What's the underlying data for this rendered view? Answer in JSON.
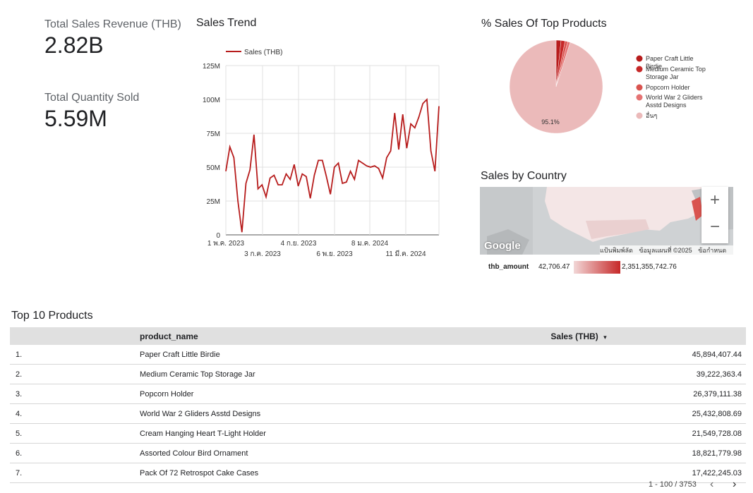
{
  "kpis": {
    "revenue": {
      "label": "Total Sales Revenue (THB)",
      "value": "2.82B"
    },
    "quantity": {
      "label": "Total Quantity Sold",
      "value": "5.59M"
    }
  },
  "sales_trend": {
    "title": "Sales Trend",
    "legend_label": "Sales (THB)",
    "y_ticks": [
      "0",
      "25M",
      "50M",
      "75M",
      "100M",
      "125M"
    ],
    "x_ticks_top": [
      "1 พ.ค. 2023",
      "4 ก.ย. 2023",
      "8 ม.ค. 2024"
    ],
    "x_ticks_bottom": [
      "3 ก.ค. 2023",
      "6 พ.ย. 2023",
      "11 มี.ค. 2024"
    ],
    "color": "#b71c1c"
  },
  "pie": {
    "title": "% Sales Of Top Products",
    "main_slice_label": "95.1%",
    "legend": [
      {
        "label": "Paper Craft Little Birdie",
        "color": "#b71c1c"
      },
      {
        "label": "Medium Ceramic Top Storage Jar",
        "color": "#c62828"
      },
      {
        "label": "Popcorn Holder",
        "color": "#d9534f"
      },
      {
        "label": "World War 2 Gliders Asstd Designs",
        "color": "#e57373"
      },
      {
        "label": "อื่นๆ",
        "color": "#ebbaba"
      }
    ]
  },
  "country_map": {
    "title": "Sales by Country",
    "zoom_in": "+",
    "zoom_out": "−",
    "logo": "Google",
    "footer": [
      "แป้นพิมพ์ลัด",
      "ข้อมูลแผนที่ ©2025",
      "ข้อกำหนด"
    ],
    "scale_label": "thb_amount",
    "scale_min": "42,706.47",
    "scale_max": "2,351,355,742.76"
  },
  "top_products": {
    "title": "Top 10 Products",
    "columns": {
      "name": "product_name",
      "sales": "Sales (THB)"
    },
    "sort_icon": "▾",
    "rows": [
      {
        "idx": "1.",
        "name": "Paper Craft Little Birdie",
        "sales": "45,894,407.44"
      },
      {
        "idx": "2.",
        "name": "Medium Ceramic Top Storage Jar",
        "sales": "39,222,363.4"
      },
      {
        "idx": "3.",
        "name": "Popcorn Holder",
        "sales": "26,379,111.38"
      },
      {
        "idx": "4.",
        "name": "World War 2 Gliders Asstd Designs",
        "sales": "25,432,808.69"
      },
      {
        "idx": "5.",
        "name": "Cream Hanging Heart T-Light Holder",
        "sales": "21,549,728.08"
      },
      {
        "idx": "6.",
        "name": "Assorted Colour Bird Ornament",
        "sales": "18,821,779.98"
      },
      {
        "idx": "7.",
        "name": "Pack Of 72 Retrospot Cake Cases",
        "sales": "17,422,245.03"
      }
    ],
    "pagination": "1 - 100 / 3753",
    "prev_icon": "‹",
    "next_icon": "›"
  },
  "chart_data": [
    {
      "type": "line",
      "title": "Sales Trend",
      "series": [
        {
          "name": "Sales (THB)",
          "values": [
            47,
            65,
            57,
            25,
            2,
            38,
            48,
            74,
            34,
            37,
            28,
            42,
            44,
            37,
            37,
            45,
            41,
            52,
            36,
            45,
            43,
            27,
            44,
            55,
            55,
            43,
            30,
            50,
            53,
            38,
            39,
            47,
            41,
            55,
            53,
            51,
            50,
            51,
            49,
            42,
            57,
            62,
            90,
            63,
            89,
            64,
            82,
            79,
            87,
            97,
            100,
            62,
            47,
            95
          ]
        }
      ],
      "ylim": [
        0,
        125
      ],
      "ylabel_unit": "M",
      "grid": true,
      "legend": "top"
    },
    {
      "type": "pie",
      "title": "% Sales Of Top Products",
      "categories": [
        "Paper Craft Little Birdie",
        "Medium Ceramic Top Storage Jar",
        "Popcorn Holder",
        "World War 2 Gliders Asstd Designs",
        "อื่นๆ"
      ],
      "values": [
        1.7,
        1.4,
        0.9,
        0.9,
        95.1
      ],
      "legend": "right"
    }
  ]
}
